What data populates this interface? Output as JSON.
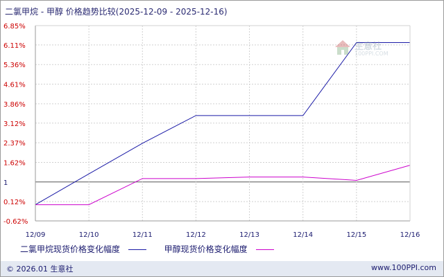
{
  "title": "二氯甲烷 - 甲醇 价格趋势比较(2025-12-09 - 2025-12-16)",
  "chart_data": {
    "type": "line",
    "x": [
      "12/09",
      "12/10",
      "12/11",
      "12/12",
      "12/13",
      "12/14",
      "12/15",
      "12/16"
    ],
    "y_ticks": [
      "6.85%",
      "6.11%",
      "5.36%",
      "4.61%",
      "3.86%",
      "3.12%",
      "2.37%",
      "1.62%",
      "1",
      "0.12%",
      "-0.62%"
    ],
    "y_tick_values": [
      6.85,
      6.11,
      5.36,
      4.61,
      3.86,
      3.12,
      2.37,
      1.62,
      0.87,
      0.12,
      -0.62
    ],
    "baseline_tick": "1",
    "ylim": [
      -0.62,
      6.85
    ],
    "grid": true,
    "legend_position": "bottom-left",
    "series": [
      {
        "name": "二氯甲烷现货价格变化幅度",
        "color": "#1a1aa6",
        "values": [
          0.0,
          1.18,
          2.35,
          3.41,
          3.41,
          3.41,
          6.2,
          6.2
        ]
      },
      {
        "name": "甲醇现货价格变化幅度",
        "color": "#cc00cc",
        "values": [
          0.0,
          0.0,
          1.0,
          1.0,
          1.06,
          1.06,
          0.93,
          1.51
        ]
      }
    ]
  },
  "watermark": {
    "text": "生意社",
    "url": "100PPI.COM"
  },
  "footer": {
    "copyright": "© 2026.01 生意社",
    "site": "www.100PPI.com"
  },
  "colors": {
    "axis": "#9a9a9a",
    "grid": "#d0d0d0",
    "tick_red": "#cc0000",
    "footer_bg": "#e4e9f2"
  }
}
